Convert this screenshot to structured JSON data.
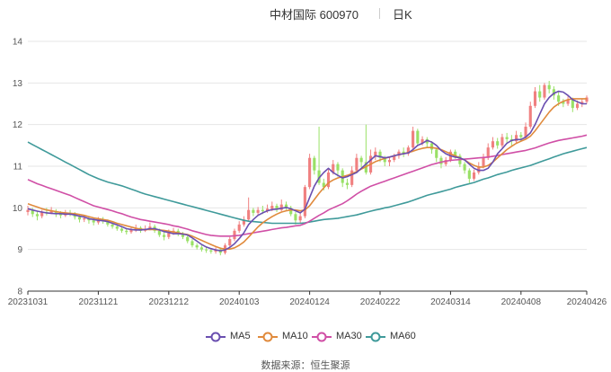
{
  "header": {
    "title": "中材国际 600970",
    "period": "日K"
  },
  "source": "数据来源：恒生聚源",
  "colors": {
    "up": "#f08080",
    "down": "#99e066",
    "ma5": "#6a4fb0",
    "ma10": "#e08a3c",
    "ma30": "#d04fa6",
    "ma60": "#3f9a9a",
    "grid": "#e6e6e6"
  },
  "chart_data": {
    "type": "candlestick",
    "y_ticks": [
      "8",
      "9",
      "10",
      "11",
      "12",
      "13",
      "14"
    ],
    "ylim": [
      8,
      14
    ],
    "x_tick_labels": [
      "20231031",
      "20231121",
      "20231212",
      "20240103",
      "20240124",
      "20240222",
      "20240314",
      "20240408",
      "20240426"
    ],
    "x_tick_index": [
      0,
      15,
      30,
      45,
      60,
      75,
      90,
      105,
      119
    ],
    "legend": [
      "MA5",
      "MA10",
      "MA30",
      "MA60"
    ],
    "candles": [
      [
        9.9,
        9.95,
        10.05,
        9.82
      ],
      [
        9.95,
        9.85,
        10.0,
        9.78
      ],
      [
        9.85,
        9.8,
        9.92,
        9.7
      ],
      [
        9.8,
        9.9,
        9.95,
        9.75
      ],
      [
        9.9,
        9.88,
        10.0,
        9.82
      ],
      [
        9.88,
        9.92,
        10.02,
        9.85
      ],
      [
        9.92,
        9.85,
        9.97,
        9.78
      ],
      [
        9.85,
        9.82,
        9.92,
        9.75
      ],
      [
        9.82,
        9.88,
        9.95,
        9.78
      ],
      [
        9.88,
        9.85,
        9.95,
        9.8
      ],
      [
        9.85,
        9.78,
        9.9,
        9.72
      ],
      [
        9.78,
        9.72,
        9.85,
        9.65
      ],
      [
        9.72,
        9.75,
        9.82,
        9.66
      ],
      [
        9.75,
        9.7,
        9.8,
        9.62
      ],
      [
        9.7,
        9.65,
        9.75,
        9.58
      ],
      [
        9.65,
        9.72,
        9.78,
        9.6
      ],
      [
        9.72,
        9.68,
        9.78,
        9.62
      ],
      [
        9.68,
        9.6,
        9.72,
        9.55
      ],
      [
        9.6,
        9.55,
        9.66,
        9.5
      ],
      [
        9.55,
        9.5,
        9.6,
        9.45
      ],
      [
        9.5,
        9.45,
        9.55,
        9.4
      ],
      [
        9.45,
        9.42,
        9.5,
        9.36
      ],
      [
        9.42,
        9.48,
        9.55,
        9.38
      ],
      [
        9.48,
        9.52,
        9.6,
        9.42
      ],
      [
        9.52,
        9.45,
        9.56,
        9.4
      ],
      [
        9.45,
        9.5,
        9.58,
        9.42
      ],
      [
        9.5,
        9.55,
        9.65,
        9.46
      ],
      [
        9.55,
        9.45,
        9.6,
        9.4
      ],
      [
        9.45,
        9.35,
        9.5,
        9.3
      ],
      [
        9.35,
        9.3,
        9.42,
        9.22
      ],
      [
        9.3,
        9.4,
        9.48,
        9.25
      ],
      [
        9.4,
        9.45,
        9.52,
        9.35
      ],
      [
        9.45,
        9.38,
        9.5,
        9.32
      ],
      [
        9.38,
        9.3,
        9.42,
        9.25
      ],
      [
        9.3,
        9.2,
        9.35,
        9.15
      ],
      [
        9.2,
        9.1,
        9.25,
        9.05
      ],
      [
        9.1,
        9.05,
        9.15,
        9.0
      ],
      [
        9.05,
        9.0,
        9.1,
        8.95
      ],
      [
        9.0,
        8.98,
        9.05,
        8.92
      ],
      [
        8.98,
        8.95,
        9.02,
        8.9
      ],
      [
        8.95,
        9.0,
        9.05,
        8.9
      ],
      [
        9.0,
        8.92,
        9.05,
        8.86
      ],
      [
        8.92,
        9.1,
        9.15,
        8.88
      ],
      [
        9.1,
        9.25,
        9.3,
        9.05
      ],
      [
        9.25,
        9.45,
        9.5,
        9.2
      ],
      [
        9.45,
        9.6,
        9.68,
        9.4
      ],
      [
        9.6,
        9.72,
        9.8,
        9.55
      ],
      [
        9.72,
        9.95,
        10.25,
        9.68
      ],
      [
        9.95,
        9.88,
        10.0,
        9.8
      ],
      [
        9.88,
        9.95,
        10.02,
        9.82
      ],
      [
        9.95,
        9.92,
        10.05,
        9.85
      ],
      [
        9.92,
        9.98,
        10.08,
        9.88
      ],
      [
        9.98,
        10.05,
        10.15,
        9.92
      ],
      [
        10.05,
        9.95,
        10.1,
        9.9
      ],
      [
        9.95,
        10.08,
        10.2,
        9.92
      ],
      [
        10.08,
        10.0,
        10.15,
        9.95
      ],
      [
        10.0,
        9.85,
        10.05,
        9.8
      ],
      [
        9.85,
        9.7,
        9.9,
        9.6
      ],
      [
        9.7,
        9.8,
        9.88,
        9.62
      ],
      [
        9.8,
        10.5,
        10.55,
        9.75
      ],
      [
        10.5,
        11.2,
        11.3,
        10.45
      ],
      [
        11.2,
        10.9,
        11.25,
        10.8
      ],
      [
        10.9,
        10.6,
        11.95,
        10.55
      ],
      [
        10.6,
        10.5,
        10.7,
        10.42
      ],
      [
        10.5,
        10.85,
        10.95,
        10.45
      ],
      [
        10.85,
        11.05,
        11.15,
        10.8
      ],
      [
        11.05,
        10.9,
        11.1,
        10.75
      ],
      [
        10.9,
        10.6,
        10.95,
        10.5
      ],
      [
        10.6,
        10.55,
        10.7,
        10.45
      ],
      [
        10.55,
        10.9,
        11.0,
        10.5
      ],
      [
        10.9,
        11.2,
        11.3,
        10.85
      ],
      [
        11.2,
        11.1,
        11.25,
        10.98
      ],
      [
        11.1,
        10.85,
        12.0,
        10.8
      ],
      [
        10.85,
        11.25,
        11.4,
        10.8
      ],
      [
        11.25,
        11.35,
        11.45,
        11.15
      ],
      [
        11.35,
        11.2,
        11.4,
        11.1
      ],
      [
        11.2,
        11.1,
        11.25,
        11.0
      ],
      [
        11.1,
        11.15,
        11.22,
        11.0
      ],
      [
        11.15,
        11.25,
        11.3,
        11.1
      ],
      [
        11.25,
        11.35,
        11.4,
        11.18
      ],
      [
        11.35,
        11.3,
        11.45,
        11.22
      ],
      [
        11.3,
        11.45,
        11.5,
        11.25
      ],
      [
        11.45,
        11.85,
        11.95,
        11.4
      ],
      [
        11.85,
        11.55,
        11.9,
        11.48
      ],
      [
        11.55,
        11.65,
        11.72,
        11.5
      ],
      [
        11.65,
        11.55,
        11.7,
        11.45
      ],
      [
        11.55,
        11.4,
        11.6,
        11.3
      ],
      [
        11.4,
        11.2,
        11.45,
        11.1
      ],
      [
        11.2,
        11.05,
        11.25,
        10.95
      ],
      [
        11.05,
        11.15,
        11.22,
        11.0
      ],
      [
        11.15,
        11.35,
        11.4,
        11.1
      ],
      [
        11.35,
        11.25,
        11.4,
        11.18
      ],
      [
        11.25,
        11.05,
        11.3,
        10.98
      ],
      [
        11.05,
        10.9,
        11.1,
        10.82
      ],
      [
        10.9,
        10.7,
        10.95,
        10.6
      ],
      [
        10.7,
        10.85,
        10.92,
        10.65
      ],
      [
        10.85,
        11.0,
        11.1,
        10.8
      ],
      [
        11.0,
        11.2,
        11.3,
        10.95
      ],
      [
        11.2,
        11.45,
        11.55,
        11.15
      ],
      [
        11.45,
        11.6,
        11.7,
        11.4
      ],
      [
        11.6,
        11.5,
        11.68,
        11.42
      ],
      [
        11.5,
        11.7,
        11.78,
        11.45
      ],
      [
        11.7,
        11.65,
        11.8,
        11.55
      ],
      [
        11.65,
        11.6,
        11.75,
        11.5
      ],
      [
        11.6,
        11.75,
        11.85,
        11.55
      ],
      [
        11.75,
        11.7,
        11.82,
        11.6
      ],
      [
        11.7,
        11.95,
        12.05,
        11.65
      ],
      [
        11.95,
        12.45,
        12.55,
        11.9
      ],
      [
        12.45,
        12.8,
        12.9,
        12.4
      ],
      [
        12.8,
        12.65,
        12.95,
        12.55
      ],
      [
        12.65,
        12.95,
        13.0,
        12.6
      ],
      [
        12.95,
        12.85,
        13.05,
        12.75
      ],
      [
        12.85,
        12.7,
        12.92,
        12.6
      ],
      [
        12.7,
        12.55,
        12.78,
        12.45
      ],
      [
        12.55,
        12.5,
        12.62,
        12.42
      ],
      [
        12.5,
        12.6,
        12.68,
        12.45
      ],
      [
        12.6,
        12.4,
        12.65,
        12.3
      ],
      [
        12.4,
        12.5,
        12.58,
        12.35
      ],
      [
        12.5,
        12.55,
        12.62,
        12.42
      ],
      [
        12.55,
        12.65,
        12.7,
        12.5
      ]
    ],
    "ma5": [
      9.98,
      9.95,
      9.92,
      9.9,
      9.88,
      9.87,
      9.86,
      9.86,
      9.85,
      9.85,
      9.83,
      9.8,
      9.78,
      9.74,
      9.72,
      9.7,
      9.69,
      9.67,
      9.63,
      9.59,
      9.55,
      9.5,
      9.48,
      9.47,
      9.47,
      9.48,
      9.5,
      9.5,
      9.47,
      9.43,
      9.41,
      9.38,
      9.38,
      9.37,
      9.35,
      9.28,
      9.2,
      9.12,
      9.06,
      9.02,
      8.99,
      8.97,
      8.99,
      9.05,
      9.14,
      9.26,
      9.4,
      9.6,
      9.72,
      9.82,
      9.88,
      9.93,
      9.96,
      9.97,
      9.99,
      10.01,
      9.98,
      9.93,
      9.88,
      9.97,
      10.25,
      10.52,
      10.72,
      10.85,
      10.95,
      10.85,
      10.78,
      10.72,
      10.75,
      10.8,
      10.85,
      10.95,
      11.05,
      11.15,
      11.25,
      11.23,
      11.2,
      11.22,
      11.25,
      11.28,
      11.3,
      11.32,
      11.4,
      11.5,
      11.55,
      11.62,
      11.58,
      11.5,
      11.38,
      11.3,
      11.25,
      11.22,
      11.2,
      11.15,
      11.05,
      10.95,
      10.9,
      10.9,
      10.95,
      11.1,
      11.3,
      11.42,
      11.55,
      11.62,
      11.64,
      11.64,
      11.7,
      11.8,
      12.0,
      12.25,
      12.5,
      12.65,
      12.75,
      12.8,
      12.78,
      12.7,
      12.6,
      12.55,
      12.5,
      12.5
    ],
    "ma10": [
      10.1,
      10.06,
      10.02,
      9.98,
      9.95,
      9.93,
      9.91,
      9.89,
      9.88,
      9.87,
      9.86,
      9.84,
      9.82,
      9.79,
      9.76,
      9.74,
      9.72,
      9.7,
      9.67,
      9.63,
      9.6,
      9.57,
      9.54,
      9.51,
      9.49,
      9.48,
      9.48,
      9.48,
      9.47,
      9.46,
      9.44,
      9.42,
      9.4,
      9.38,
      9.36,
      9.32,
      9.27,
      9.22,
      9.17,
      9.12,
      9.07,
      9.03,
      9.01,
      9.01,
      9.04,
      9.1,
      9.18,
      9.3,
      9.42,
      9.54,
      9.64,
      9.72,
      9.79,
      9.85,
      9.9,
      9.93,
      9.95,
      9.95,
      9.93,
      9.95,
      10.05,
      10.2,
      10.35,
      10.48,
      10.6,
      10.67,
      10.72,
      10.75,
      10.78,
      10.82,
      10.87,
      10.93,
      10.99,
      11.05,
      11.11,
      11.15,
      11.19,
      11.22,
      11.25,
      11.28,
      11.3,
      11.33,
      11.36,
      11.4,
      11.43,
      11.45,
      11.45,
      11.43,
      11.4,
      11.35,
      11.3,
      11.25,
      11.2,
      11.15,
      11.08,
      11.02,
      10.98,
      10.98,
      11.02,
      11.1,
      11.2,
      11.3,
      11.4,
      11.48,
      11.55,
      11.6,
      11.65,
      11.72,
      11.85,
      12.0,
      12.15,
      12.3,
      12.42,
      12.5,
      12.56,
      12.6,
      12.62,
      12.62,
      12.62,
      12.62
    ],
    "ma30": [
      10.68,
      10.63,
      10.58,
      10.54,
      10.5,
      10.46,
      10.42,
      10.38,
      10.34,
      10.3,
      10.25,
      10.2,
      10.15,
      10.1,
      10.05,
      10.02,
      9.99,
      9.96,
      9.93,
      9.89,
      9.86,
      9.82,
      9.78,
      9.75,
      9.72,
      9.7,
      9.68,
      9.66,
      9.64,
      9.62,
      9.6,
      9.57,
      9.55,
      9.52,
      9.49,
      9.45,
      9.42,
      9.39,
      9.36,
      9.34,
      9.33,
      9.32,
      9.32,
      9.32,
      9.33,
      9.34,
      9.36,
      9.38,
      9.4,
      9.42,
      9.44,
      9.46,
      9.48,
      9.5,
      9.52,
      9.53,
      9.55,
      9.57,
      9.58,
      9.62,
      9.68,
      9.75,
      9.82,
      9.88,
      9.95,
      10.0,
      10.05,
      10.1,
      10.17,
      10.25,
      10.33,
      10.4,
      10.46,
      10.52,
      10.56,
      10.6,
      10.64,
      10.68,
      10.72,
      10.76,
      10.8,
      10.84,
      10.88,
      10.92,
      10.96,
      11.0,
      11.04,
      11.07,
      11.1,
      11.12,
      11.14,
      11.15,
      11.16,
      11.17,
      11.18,
      11.19,
      11.2,
      11.21,
      11.22,
      11.24,
      11.26,
      11.28,
      11.3,
      11.32,
      11.34,
      11.36,
      11.38,
      11.41,
      11.44,
      11.48,
      11.52,
      11.56,
      11.59,
      11.62,
      11.64,
      11.66,
      11.68,
      11.7,
      11.72,
      11.75
    ],
    "ma60": [
      11.58,
      11.52,
      11.46,
      11.4,
      11.34,
      11.28,
      11.22,
      11.16,
      11.1,
      11.04,
      10.98,
      10.92,
      10.86,
      10.8,
      10.75,
      10.7,
      10.66,
      10.62,
      10.59,
      10.56,
      10.53,
      10.49,
      10.45,
      10.41,
      10.37,
      10.33,
      10.3,
      10.27,
      10.24,
      10.21,
      10.18,
      10.15,
      10.12,
      10.09,
      10.06,
      10.03,
      10.0,
      9.97,
      9.94,
      9.91,
      9.88,
      9.85,
      9.82,
      9.79,
      9.76,
      9.73,
      9.7,
      9.68,
      9.67,
      9.66,
      9.65,
      9.64,
      9.63,
      9.63,
      9.63,
      9.63,
      9.63,
      9.63,
      9.63,
      9.64,
      9.66,
      9.68,
      9.7,
      9.72,
      9.73,
      9.74,
      9.75,
      9.77,
      9.79,
      9.81,
      9.83,
      9.86,
      9.89,
      9.92,
      9.95,
      9.97,
      10.0,
      10.02,
      10.05,
      10.08,
      10.11,
      10.14,
      10.18,
      10.22,
      10.26,
      10.3,
      10.33,
      10.36,
      10.39,
      10.42,
      10.45,
      10.49,
      10.52,
      10.55,
      10.58,
      10.61,
      10.65,
      10.69,
      10.72,
      10.76,
      10.8,
      10.83,
      10.86,
      10.9,
      10.93,
      10.96,
      10.99,
      11.02,
      11.06,
      11.1,
      11.14,
      11.18,
      11.22,
      11.26,
      11.3,
      11.33,
      11.36,
      11.39,
      11.42,
      11.45
    ]
  }
}
